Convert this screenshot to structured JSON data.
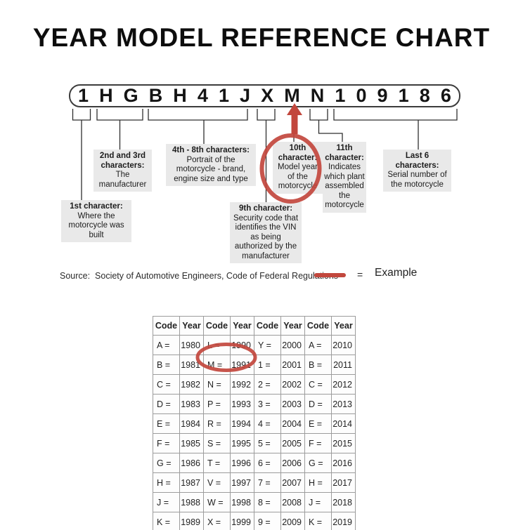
{
  "title": "YEAR MODEL REFERENCE CHART",
  "vin": {
    "characters": [
      "1",
      "H",
      "G",
      "B",
      "H",
      "4",
      "1",
      "J",
      "X",
      "M",
      "N",
      "1",
      "0",
      "9",
      "1",
      "8",
      "6"
    ]
  },
  "callouts": {
    "first": {
      "heading": "1st character:",
      "body": "Where the motorcycle was built"
    },
    "second_third": {
      "heading": "2nd and 3rd characters:",
      "body": "The manufacturer"
    },
    "fourth_eighth": {
      "heading": "4th - 8th characters:",
      "body": "Portrait of the motorcycle - brand, engine size and type"
    },
    "ninth": {
      "heading": "9th character:",
      "body": "Security code that identifies the VIN as being authorized by the manufacturer"
    },
    "tenth": {
      "heading": "10th character:",
      "body": "Model year of the motorcycle"
    },
    "eleventh": {
      "heading": "11th character:",
      "body": "Indicates which plant assembled the motorcycle"
    },
    "last_six": {
      "heading": "Last 6 characters:",
      "body": "Serial number of the motorcycle"
    }
  },
  "source": {
    "text": "Source:  Society of Automotive Engineers, Code of Federal Regulations"
  },
  "legend": {
    "equals": "=",
    "label": "Example"
  },
  "colors": {
    "accent_red": "#c2473d",
    "label_bg": "#e9e9e9"
  },
  "chart_data": {
    "type": "table",
    "headers": [
      "Code",
      "Year",
      "Code",
      "Year",
      "Code",
      "Year",
      "Code",
      "Year"
    ],
    "rows": [
      [
        "A =",
        "1980",
        "L =",
        "1990",
        "Y =",
        "2000",
        "A =",
        "2010"
      ],
      [
        "B =",
        "1981",
        "M =",
        "1991",
        "1 =",
        "2001",
        "B =",
        "2011"
      ],
      [
        "C =",
        "1982",
        "N =",
        "1992",
        "2 =",
        "2002",
        "C =",
        "2012"
      ],
      [
        "D =",
        "1983",
        "P =",
        "1993",
        "3 =",
        "2003",
        "D =",
        "2013"
      ],
      [
        "E =",
        "1984",
        "R =",
        "1994",
        "4 =",
        "2004",
        "E =",
        "2014"
      ],
      [
        "F =",
        "1985",
        "S =",
        "1995",
        "5 =",
        "2005",
        "F =",
        "2015"
      ],
      [
        "G =",
        "1986",
        "T =",
        "1996",
        "6 =",
        "2006",
        "G =",
        "2016"
      ],
      [
        "H =",
        "1987",
        "V =",
        "1997",
        "7 =",
        "2007",
        "H =",
        "2017"
      ],
      [
        "J =",
        "1988",
        "W =",
        "1998",
        "8 =",
        "2008",
        "J =",
        "2018"
      ],
      [
        "K =",
        "1989",
        "X =",
        "1999",
        "9 =",
        "2009",
        "K =",
        "2019"
      ]
    ],
    "highlighted_entry": [
      "M =",
      "1991"
    ]
  }
}
